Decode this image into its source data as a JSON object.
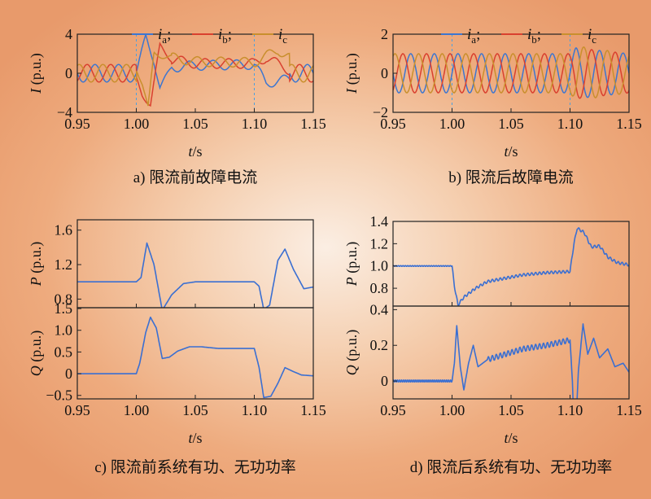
{
  "chart_data": [
    {
      "type": "line",
      "caption": "a) 限流前故障电流",
      "xlabel": "t/s",
      "ylabel": "I (p.u.)",
      "xlim": [
        0.95,
        1.15
      ],
      "ylim": [
        -4,
        4
      ],
      "xticks": [
        "0.95",
        "1.00",
        "1.05",
        "1.10",
        "1.15"
      ],
      "yticks": [
        "4",
        "0",
        "−4"
      ],
      "markers_x": [
        1.0,
        1.1
      ],
      "legend": [
        {
          "symbol": "i",
          "sub": "a",
          "sep": ";"
        },
        {
          "symbol": "i",
          "sub": "b",
          "sep": ";"
        },
        {
          "symbol": "i",
          "sub": "c",
          "sep": ""
        }
      ],
      "series": [
        {
          "phase": 0,
          "points": [
            [
              0.95,
              0.0
            ],
            [
              1.0,
              0.0
            ],
            [
              1.005,
              2.4
            ],
            [
              1.008,
              3.8
            ],
            [
              1.015,
              1.2
            ],
            [
              1.02,
              -1.5
            ],
            [
              1.03,
              0.6
            ],
            [
              1.05,
              0.8
            ],
            [
              1.1,
              0.9
            ],
            [
              1.11,
              -1.0
            ],
            [
              1.13,
              -0.6
            ],
            [
              1.15,
              0.3
            ]
          ]
        },
        {
          "phase": 1,
          "points": [
            [
              0.95,
              -0.6
            ],
            [
              1.0,
              -0.6
            ],
            [
              1.005,
              -2.2
            ],
            [
              1.012,
              -3.2
            ],
            [
              1.02,
              2.8
            ],
            [
              1.03,
              1.4
            ],
            [
              1.05,
              1.0
            ],
            [
              1.1,
              1.0
            ],
            [
              1.11,
              1.6
            ],
            [
              1.13,
              0.3
            ],
            [
              1.15,
              0.2
            ]
          ]
        },
        {
          "phase": 2,
          "points": [
            [
              0.95,
              0.6
            ],
            [
              1.0,
              0.6
            ],
            [
              1.005,
              -1.0
            ],
            [
              1.01,
              -3.6
            ],
            [
              1.015,
              2.0
            ],
            [
              1.03,
              1.6
            ],
            [
              1.05,
              1.2
            ],
            [
              1.1,
              1.1
            ],
            [
              1.12,
              2.4
            ],
            [
              1.14,
              0.8
            ],
            [
              1.15,
              0.5
            ]
          ]
        }
      ]
    },
    {
      "type": "line",
      "caption": "b) 限流后故障电流",
      "xlabel": "t/s",
      "ylabel": "I (p.u.)",
      "xlim": [
        0.95,
        1.15
      ],
      "ylim": [
        -2,
        2
      ],
      "xticks": [
        "0.95",
        "1.00",
        "1.05",
        "1.10",
        "1.15"
      ],
      "yticks": [
        "2",
        "0",
        "−2"
      ],
      "markers_x": [
        1.0,
        1.1
      ],
      "legend": [
        {
          "symbol": "i",
          "sub": "a",
          "sep": ";"
        },
        {
          "symbol": "i",
          "sub": "b",
          "sep": ";"
        },
        {
          "symbol": "i",
          "sub": "c",
          "sep": ""
        }
      ],
      "series": [
        {
          "phase": 0,
          "points": [
            [
              0.95,
              1.0
            ],
            [
              1.0,
              1.0
            ],
            [
              1.1,
              1.0
            ],
            [
              1.105,
              1.3
            ],
            [
              1.15,
              1.0
            ]
          ]
        },
        {
          "phase": 1,
          "points": [
            [
              0.95,
              1.0
            ],
            [
              1.0,
              1.0
            ],
            [
              1.1,
              1.0
            ],
            [
              1.105,
              1.3
            ],
            [
              1.15,
              1.0
            ]
          ]
        },
        {
          "phase": 2,
          "points": [
            [
              0.95,
              1.0
            ],
            [
              1.0,
              1.0
            ],
            [
              1.1,
              1.0
            ],
            [
              1.105,
              1.4
            ],
            [
              1.15,
              1.0
            ]
          ]
        }
      ]
    },
    {
      "type": "line",
      "caption": "c) 限流前系统有功、无功功率",
      "xlabel": "t/s",
      "xlim": [
        0.95,
        1.15
      ],
      "xticks": [
        "0.95",
        "1.00",
        "1.05",
        "1.10",
        "1.15"
      ],
      "panels": [
        {
          "ylabel": "P (p.u.)",
          "ylim": [
            0.7,
            1.72
          ],
          "yticks": [
            "1.6",
            "1.2",
            "0.8"
          ],
          "points": [
            [
              0.95,
              1.0
            ],
            [
              1.0,
              1.0
            ],
            [
              1.004,
              1.05
            ],
            [
              1.009,
              1.45
            ],
            [
              1.015,
              1.2
            ],
            [
              1.022,
              0.67
            ],
            [
              1.03,
              0.85
            ],
            [
              1.04,
              0.98
            ],
            [
              1.05,
              1.0
            ],
            [
              1.1,
              1.0
            ],
            [
              1.104,
              0.95
            ],
            [
              1.108,
              0.68
            ],
            [
              1.113,
              0.73
            ],
            [
              1.12,
              1.25
            ],
            [
              1.126,
              1.38
            ],
            [
              1.133,
              1.15
            ],
            [
              1.142,
              0.92
            ],
            [
              1.15,
              0.94
            ]
          ]
        },
        {
          "ylabel": "Q (p.u.)",
          "ylim": [
            -0.58,
            1.52
          ],
          "yticks": [
            "1.5",
            "1.0",
            "0.5",
            "0",
            "−0.5"
          ],
          "points": [
            [
              0.95,
              0.0
            ],
            [
              1.0,
              0.0
            ],
            [
              1.003,
              0.25
            ],
            [
              1.008,
              0.95
            ],
            [
              1.012,
              1.3
            ],
            [
              1.017,
              1.05
            ],
            [
              1.022,
              0.35
            ],
            [
              1.028,
              0.38
            ],
            [
              1.035,
              0.52
            ],
            [
              1.045,
              0.62
            ],
            [
              1.055,
              0.62
            ],
            [
              1.07,
              0.58
            ],
            [
              1.1,
              0.58
            ],
            [
              1.104,
              0.15
            ],
            [
              1.108,
              -0.55
            ],
            [
              1.114,
              -0.52
            ],
            [
              1.12,
              -0.22
            ],
            [
              1.126,
              0.14
            ],
            [
              1.133,
              0.05
            ],
            [
              1.14,
              -0.03
            ],
            [
              1.15,
              -0.05
            ]
          ]
        }
      ]
    },
    {
      "type": "line",
      "caption": "d) 限流后系统有功、无功功率",
      "xlabel": "t/s",
      "xlim": [
        0.95,
        1.15
      ],
      "xticks": [
        "0.95",
        "1.00",
        "1.05",
        "1.10",
        "1.15"
      ],
      "panels": [
        {
          "ylabel": "P (p.u.)",
          "ylim": [
            0.64,
            1.4
          ],
          "yticks": [
            "1.4",
            "1.2",
            "1.0",
            "0.8"
          ],
          "points": [
            [
              0.95,
              1.0
            ],
            [
              1.0,
              1.0
            ],
            [
              1.002,
              0.82
            ],
            [
              1.005,
              0.65
            ],
            [
              1.01,
              0.72
            ],
            [
              1.02,
              0.8
            ],
            [
              1.03,
              0.86
            ],
            [
              1.045,
              0.89
            ],
            [
              1.06,
              0.92
            ],
            [
              1.08,
              0.94
            ],
            [
              1.1,
              0.95
            ],
            [
              1.103,
              1.18
            ],
            [
              1.106,
              1.34
            ],
            [
              1.112,
              1.3
            ],
            [
              1.118,
              1.17
            ],
            [
              1.125,
              1.18
            ],
            [
              1.132,
              1.08
            ],
            [
              1.14,
              1.03
            ],
            [
              1.15,
              1.01
            ]
          ]
        },
        {
          "ylabel": "Q (p.u.)",
          "ylim": [
            -0.1,
            0.42
          ],
          "yticks": [
            "0.4",
            "0.2",
            "0"
          ],
          "points": [
            [
              0.95,
              0.0
            ],
            [
              1.0,
              0.0
            ],
            [
              1.002,
              0.1
            ],
            [
              1.004,
              0.31
            ],
            [
              1.007,
              0.08
            ],
            [
              1.01,
              -0.05
            ],
            [
              1.014,
              0.1
            ],
            [
              1.018,
              0.2
            ],
            [
              1.022,
              0.08
            ],
            [
              1.03,
              0.12
            ],
            [
              1.04,
              0.14
            ],
            [
              1.06,
              0.18
            ],
            [
              1.08,
              0.2
            ],
            [
              1.1,
              0.23
            ],
            [
              1.102,
              0.0
            ],
            [
              1.104,
              -0.4
            ],
            [
              1.107,
              0.05
            ],
            [
              1.111,
              0.32
            ],
            [
              1.115,
              0.15
            ],
            [
              1.12,
              0.24
            ],
            [
              1.125,
              0.13
            ],
            [
              1.132,
              0.18
            ],
            [
              1.138,
              0.08
            ],
            [
              1.145,
              0.1
            ],
            [
              1.15,
              0.05
            ]
          ]
        }
      ]
    }
  ],
  "colors": {
    "a": "#3d76d0",
    "b": "#d9402f",
    "c": "#c98f2d",
    "p": "#3a6fd2",
    "q": "#3a6fd2",
    "marker": "#4aa0e0"
  }
}
